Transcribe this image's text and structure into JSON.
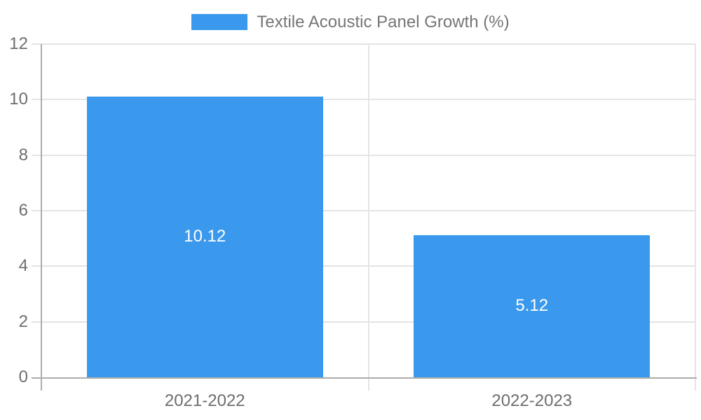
{
  "chart_data": {
    "type": "bar",
    "title": "",
    "legend": {
      "position": "top",
      "label": "Textile Acoustic Panel Growth (%)"
    },
    "categories": [
      "2021-2022",
      "2022-2023"
    ],
    "series": [
      {
        "name": "Textile Acoustic Panel Growth (%)",
        "values": [
          10.12,
          5.12
        ],
        "data_labels": [
          "10.12",
          "5.12"
        ]
      }
    ],
    "ylim": [
      0,
      12
    ],
    "yticks": [
      0,
      2,
      4,
      6,
      8,
      10,
      12
    ],
    "grid": true,
    "colors": {
      "bar": "#3a99ec",
      "grid": "#e4e4e4",
      "axis": "#adadad",
      "tick_label": "#6e6e6e",
      "legend_text": "#757575",
      "data_label": "#ffffff",
      "background": "#ffffff"
    }
  }
}
